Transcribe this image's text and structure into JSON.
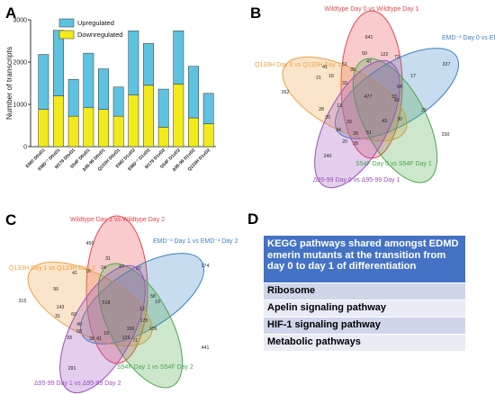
{
  "panels": {
    "A": "A",
    "B": "B",
    "C": "C",
    "D": "D"
  },
  "chart_data": [
    {
      "type": "bar",
      "stacked": true,
      "ylabel": "Number of transcripts",
      "ylim": [
        0,
        3000
      ],
      "yticks": [
        "0",
        "1000",
        "2000",
        "3000"
      ],
      "categories": [
        "EMD D0vD1",
        "EMD⁻¹ D0vD1",
        "M179 D0vD1",
        "S54F D0vD1",
        "Δ95-99 D0vD1",
        "Q133H D0vD1",
        "EMD D1vD2",
        "EMD⁻¹ D1vD2",
        "M179 D1vD2",
        "S54F D1vD2",
        "Δ95-99 D1vD2",
        "Q133H D1vD2"
      ],
      "series": [
        {
          "name": "Downregulated",
          "color": "#f2ea1b",
          "values": [
            880,
            1200,
            720,
            920,
            880,
            720,
            1220,
            1450,
            460,
            1480,
            680,
            540
          ]
        },
        {
          "name": "Upregulated",
          "color": "#5ec3e0",
          "values": [
            1300,
            1550,
            870,
            1290,
            960,
            690,
            1520,
            990,
            900,
            1260,
            1220,
            720
          ]
        }
      ],
      "legend": "top-right",
      "grid": false
    },
    {
      "type": "venn",
      "sets": [
        {
          "name": "Wildtype Day 0 vs Wildtype Day 1",
          "color": "#e8454b"
        },
        {
          "name": "EMD⁻¹ Day 0 vs EMD⁻¹ Day 1",
          "color": "#3b82c4"
        },
        {
          "name": "Q133H Day 0 vs Q133H Day 1",
          "color": "#f0a040"
        },
        {
          "name": "S54F Day 0 vs S54F Day 1",
          "color": "#4aa84a"
        },
        {
          "name": "Δ95-99 Day 0 vs Δ95-99 Day 1",
          "color": "#9b4fc0"
        }
      ],
      "values": [
        "641",
        "337",
        "262",
        "230",
        "240",
        "477",
        "50",
        "122",
        "73",
        "51",
        "41",
        "21",
        "16",
        "35",
        "47",
        "17",
        "64",
        "33",
        "60",
        "13",
        "28",
        "20",
        "29",
        "43",
        "30",
        "25",
        "34",
        "26",
        "51",
        "33",
        "28",
        "20"
      ]
    },
    {
      "type": "venn",
      "sets": [
        {
          "name": "Wildtype Day 1 vs Wildtype Day 2",
          "color": "#e8454b"
        },
        {
          "name": "EMD⁻¹ Day 1 vs EMD⁻¹ Day 2",
          "color": "#3b82c4"
        },
        {
          "name": "Q133H Day 1 vs Q133H Day 2",
          "color": "#f0a040"
        },
        {
          "name": "S54F Day 1 vs S54F Day 2",
          "color": "#4aa84a"
        },
        {
          "name": "Δ95-99 Day 1 vs Δ95-99 Day 2",
          "color": "#9b4fc0"
        }
      ],
      "values": [
        "450",
        "274",
        "315",
        "441",
        "291",
        "518",
        "16",
        "31",
        "47",
        "24",
        "37",
        "41",
        "90",
        "58",
        "19",
        "143",
        "31",
        "60",
        "175",
        "106",
        "41",
        "126",
        "40",
        "58",
        "33",
        "28",
        "19",
        "12",
        "156",
        "71"
      ]
    }
  ],
  "kegg": {
    "title": "KEGG pathways shared amongst EDMD emerin mutants at the transition from day 0 to day 1 of differentiation",
    "rows": [
      "Ribosome",
      "Apelin signaling pathway",
      "HIF-1 signaling pathway",
      "Metabolic pathways"
    ]
  }
}
